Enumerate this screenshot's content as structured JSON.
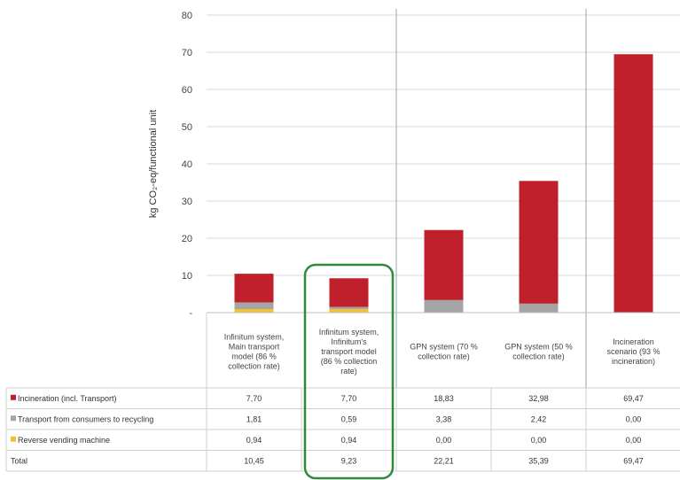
{
  "chart_data": {
    "type": "bar",
    "stacked": true,
    "ylabel": "kg CO₂-eq/functional unit",
    "ylim": [
      0,
      80
    ],
    "yticks": [
      0,
      10,
      20,
      30,
      40,
      50,
      60,
      70,
      80
    ],
    "ytick_labels": [
      "-",
      "10",
      "20",
      "30",
      "40",
      "50",
      "60",
      "70",
      "80"
    ],
    "categories": [
      [
        "Infinitum system,",
        "Main transport",
        "model (86 %",
        "collection rate)"
      ],
      [
        "Infinitum system,",
        "Infinitum's",
        "transport model",
        "(86 % collection",
        "rate)"
      ],
      [
        "GPN system (70 %",
        "collection rate)"
      ],
      [
        "GPN system (50 %",
        "collection rate)"
      ],
      [
        "Incineration",
        "scenario (93 %",
        "incineration)"
      ]
    ],
    "series": [
      {
        "name": "Reverse vending machine",
        "color": "#f2c12e",
        "values": [
          0.94,
          0.94,
          0.0,
          0.0,
          0.0
        ]
      },
      {
        "name": "Transport from consumers to recycling",
        "color": "#a5a5a5",
        "values": [
          1.81,
          0.59,
          3.38,
          2.42,
          0.0
        ]
      },
      {
        "name": "Incineration (incl. Transport)",
        "color": "#c0202b",
        "values": [
          7.7,
          7.7,
          18.83,
          32.98,
          69.47
        ]
      }
    ],
    "table": {
      "rows": [
        {
          "label": "Incineration (incl. Transport)",
          "color": "#c0202b",
          "cells": [
            "7,70",
            "7,70",
            "18,83",
            "32,98",
            "69,47"
          ]
        },
        {
          "label": "Transport from consumers to recycling",
          "color": "#a5a5a5",
          "cells": [
            "1,81",
            "0,59",
            "3,38",
            "2,42",
            "0,00"
          ]
        },
        {
          "label": "Reverse vending machine",
          "color": "#f2c12e",
          "cells": [
            "0,94",
            "0,94",
            "0,00",
            "0,00",
            "0,00"
          ]
        },
        {
          "label": "Total",
          "color": null,
          "cells": [
            "10,45",
            "9,23",
            "22,21",
            "35,39",
            "69,47"
          ]
        }
      ]
    },
    "highlight": {
      "category_index": 1,
      "color": "#2e8b3e"
    }
  }
}
